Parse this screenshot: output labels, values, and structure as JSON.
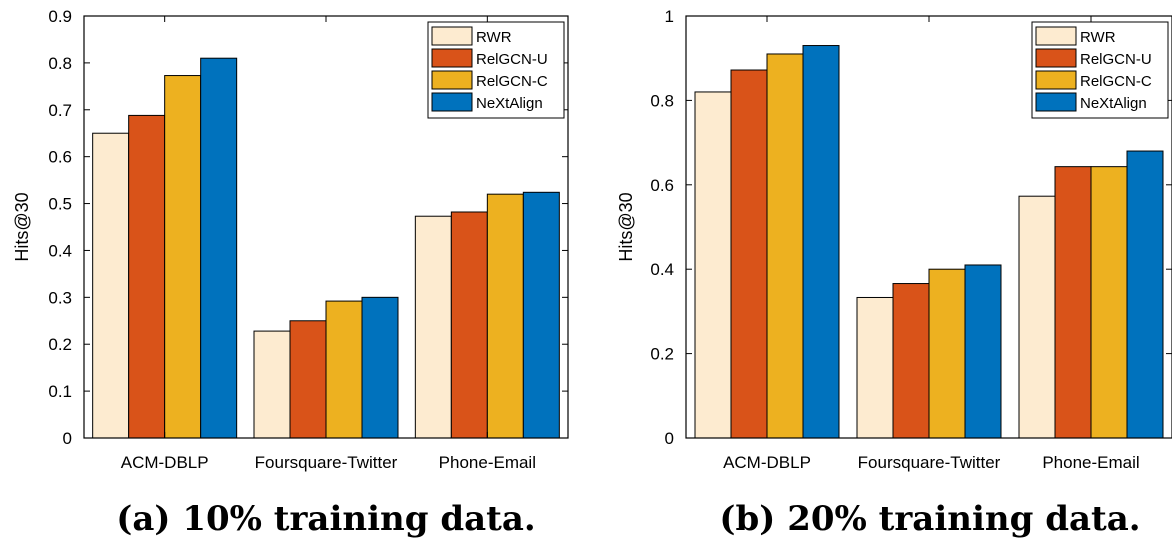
{
  "series_colors": [
    "#fdebd0",
    "#d95319",
    "#edb120",
    "#0072bd"
  ],
  "chart_data": [
    {
      "type": "bar",
      "caption": "(a) 10% training data.",
      "ylabel": "Hits@30",
      "xlabel": "",
      "ylim": [
        0,
        0.9
      ],
      "yticks": [
        0,
        0.1,
        0.2,
        0.3,
        0.4,
        0.5,
        0.6,
        0.7,
        0.8,
        0.9
      ],
      "ytick_labels": [
        "0",
        "0.1",
        "0.2",
        "0.3",
        "0.4",
        "0.5",
        "0.6",
        "0.7",
        "0.8",
        "0.9"
      ],
      "grid": false,
      "legend_position": "top-right",
      "categories": [
        "ACM-DBLP",
        "Foursquare-Twitter",
        "Phone-Email"
      ],
      "series": [
        {
          "name": "RWR",
          "values": [
            0.65,
            0.228,
            0.473
          ]
        },
        {
          "name": "RelGCN-U",
          "values": [
            0.688,
            0.25,
            0.482
          ]
        },
        {
          "name": "RelGCN-C",
          "values": [
            0.773,
            0.292,
            0.52
          ]
        },
        {
          "name": "NeXtAlign",
          "values": [
            0.81,
            0.3,
            0.524
          ]
        }
      ]
    },
    {
      "type": "bar",
      "caption": "(b) 20% training data.",
      "ylabel": "Hits@30",
      "xlabel": "",
      "ylim": [
        0,
        1
      ],
      "yticks": [
        0,
        0.2,
        0.4,
        0.6,
        0.8,
        1
      ],
      "ytick_labels": [
        "0",
        "0.2",
        "0.4",
        "0.6",
        "0.8",
        "1"
      ],
      "grid": false,
      "legend_position": "top-right",
      "categories": [
        "ACM-DBLP",
        "Foursquare-Twitter",
        "Phone-Email"
      ],
      "series": [
        {
          "name": "RWR",
          "values": [
            0.82,
            0.333,
            0.573
          ]
        },
        {
          "name": "RelGCN-U",
          "values": [
            0.872,
            0.366,
            0.643
          ]
        },
        {
          "name": "RelGCN-C",
          "values": [
            0.91,
            0.4,
            0.643
          ]
        },
        {
          "name": "NeXtAlign",
          "values": [
            0.93,
            0.41,
            0.68
          ]
        }
      ]
    }
  ]
}
